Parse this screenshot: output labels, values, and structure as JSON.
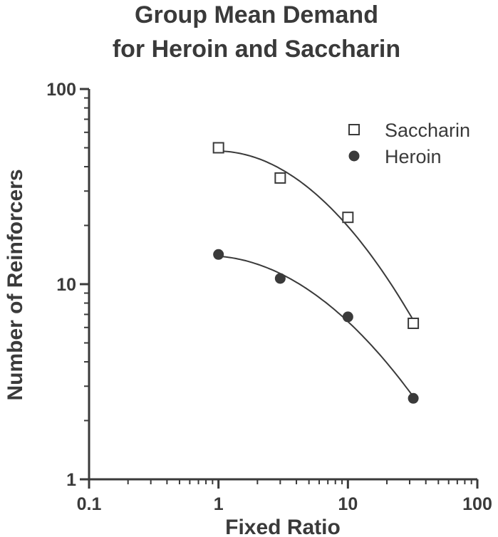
{
  "chart_data": {
    "type": "scatter",
    "title": [
      "Group Mean Demand",
      "for Heroin and Saccharin"
    ],
    "xlabel": "Fixed Ratio",
    "ylabel": "Number of Reinforcers",
    "x_scale": "log",
    "y_scale": "log",
    "xlim": [
      0.1,
      100
    ],
    "ylim": [
      1,
      100
    ],
    "x_ticks": [
      "0.1",
      "1",
      "10",
      "100"
    ],
    "y_ticks": [
      "1",
      "10",
      "100"
    ],
    "grid": false,
    "legend_position": "top-right",
    "series": [
      {
        "name": "Saccharin",
        "marker": "open-square",
        "color": "#3a3a3a",
        "x": [
          1,
          3,
          10,
          32
        ],
        "y": [
          50,
          35,
          22,
          6.3
        ],
        "fit_curve": true
      },
      {
        "name": "Heroin",
        "marker": "filled-circle",
        "color": "#3a3a3a",
        "x": [
          1,
          3,
          10,
          32
        ],
        "y": [
          14.2,
          10.7,
          6.8,
          2.6
        ],
        "fit_curve": true
      }
    ]
  }
}
